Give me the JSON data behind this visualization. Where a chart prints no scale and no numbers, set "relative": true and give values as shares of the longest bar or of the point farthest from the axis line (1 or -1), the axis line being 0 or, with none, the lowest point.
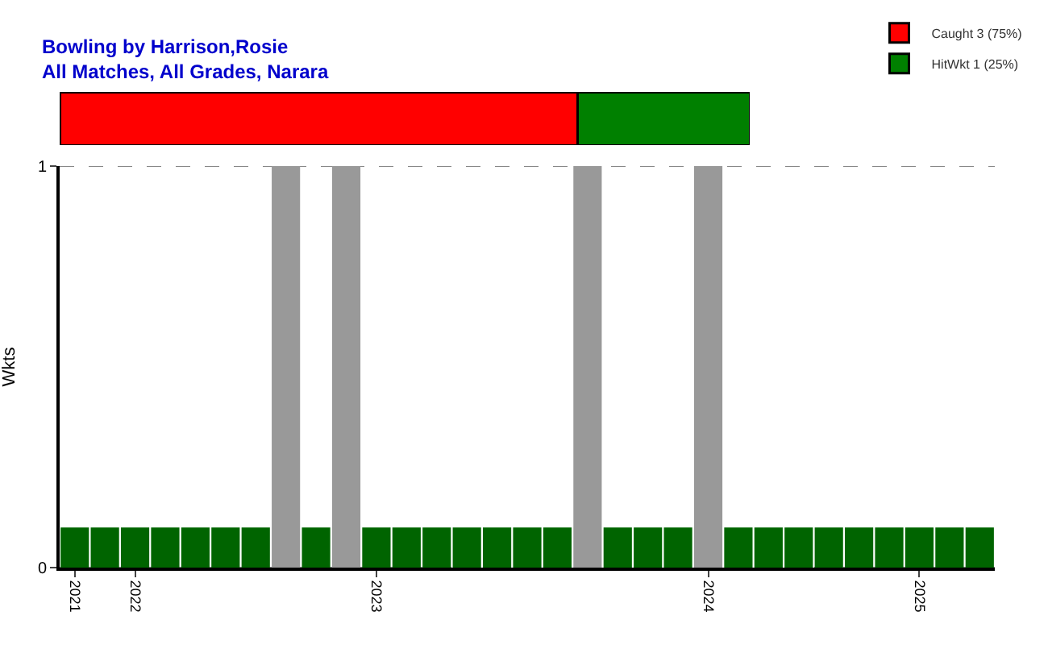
{
  "chart_data": [
    {
      "type": "bar",
      "title": "Bowling by Harrison,Rosie",
      "subtitle": "All Matches, All Grades, Narara",
      "orientation": "horizontal",
      "stacked": true,
      "relative": true,
      "categories": [
        null
      ],
      "legend": "top right",
      "series": [
        {
          "name": "Caught 3 (75%)",
          "color": "#ff0000",
          "values": [
            0.75
          ]
        },
        {
          "name": "HitWkt 1 (25%)",
          "color": "#008000",
          "values": [
            0.25
          ]
        }
      ]
    },
    {
      "type": "bar",
      "ylabel": "Wkts",
      "ylim": [
        0,
        1
      ],
      "yticks": [
        0,
        1
      ],
      "grid": "y",
      "legend": false,
      "categories": [
        "2021",
        null,
        "2022",
        null,
        null,
        null,
        null,
        null,
        null,
        null,
        "2023",
        null,
        null,
        null,
        null,
        null,
        null,
        null,
        null,
        null,
        null,
        "2024",
        null,
        null,
        null,
        null,
        null,
        null,
        "2025",
        null,
        null
      ],
      "series": [
        {
          "color": "#999999",
          "values": [
            null,
            null,
            null,
            null,
            null,
            null,
            null,
            1,
            null,
            1,
            null,
            null,
            null,
            null,
            null,
            null,
            null,
            1,
            null,
            null,
            null,
            1,
            null,
            null,
            null,
            null,
            null,
            null,
            null,
            null,
            null
          ]
        },
        {
          "color": "#006400",
          "values": [
            0.1,
            0.1,
            0.1,
            0.1,
            0.1,
            0.1,
            0.1,
            null,
            0.1,
            null,
            0.1,
            0.1,
            0.1,
            0.1,
            0.1,
            0.1,
            0.1,
            null,
            0.1,
            0.1,
            0.1,
            null,
            0.1,
            0.1,
            0.1,
            0.1,
            0.1,
            0.1,
            0.1,
            0.1,
            0.1
          ]
        }
      ]
    }
  ]
}
